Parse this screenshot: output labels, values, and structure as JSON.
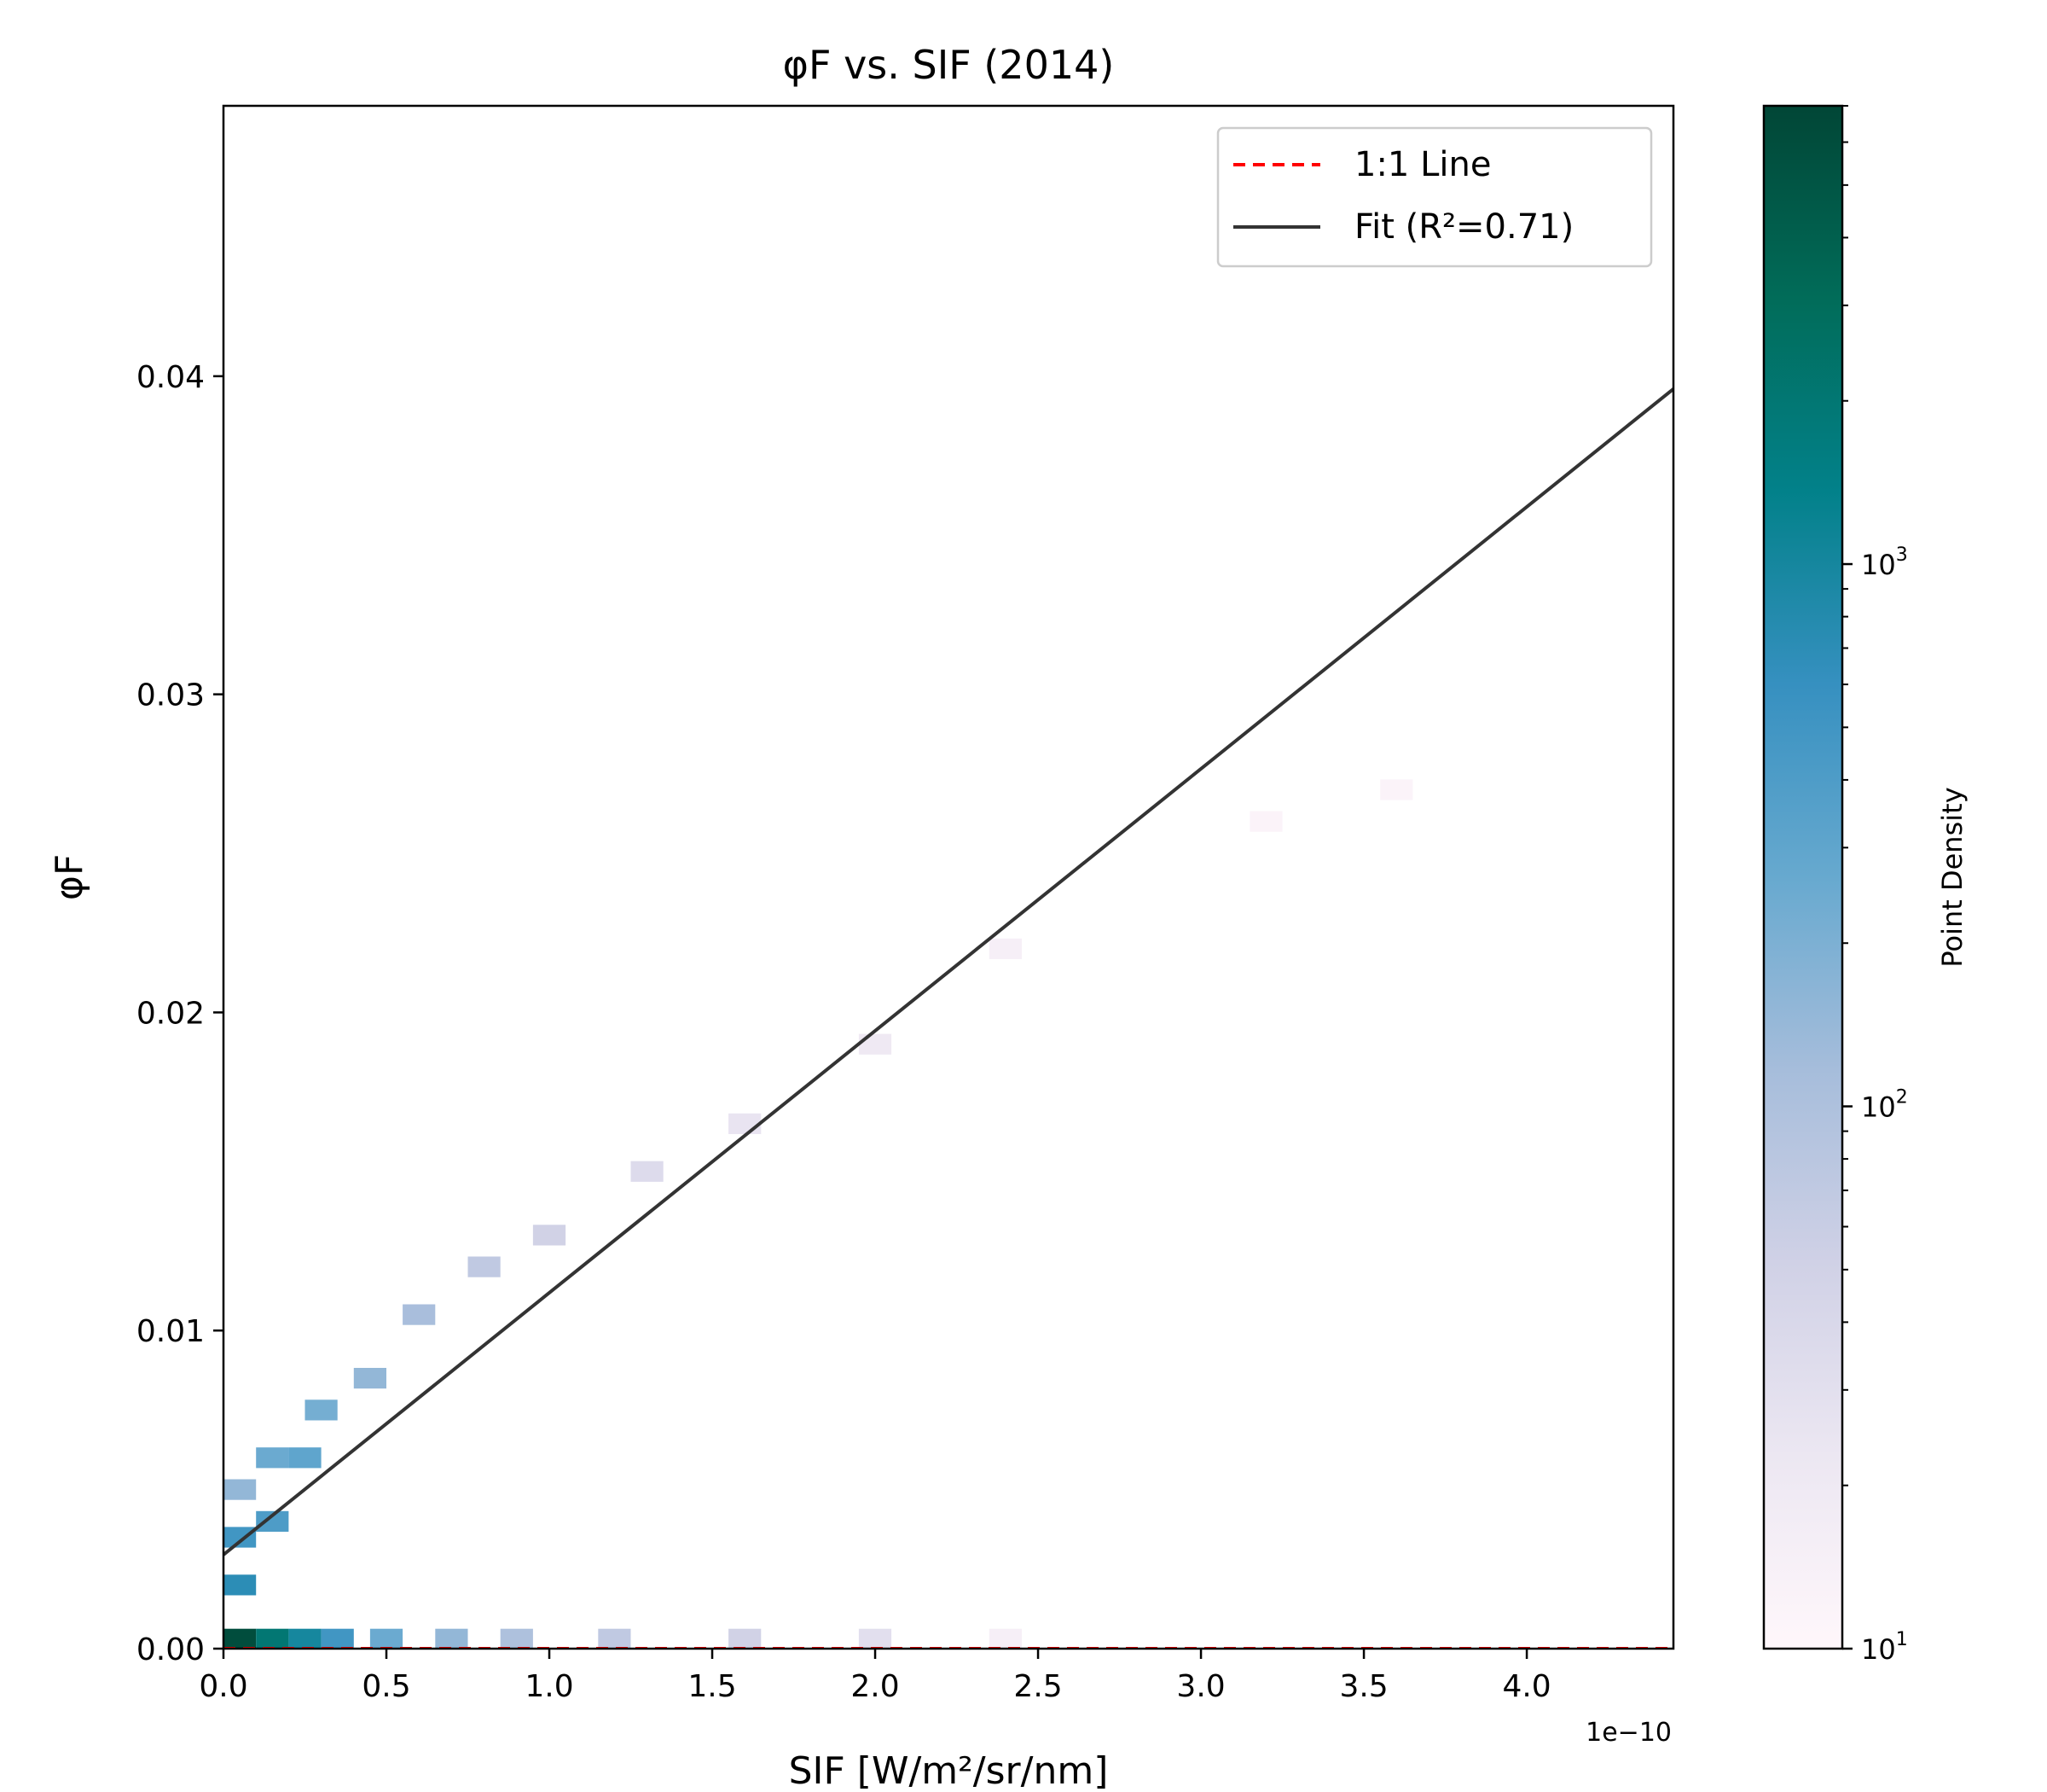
{
  "chart_data": {
    "type": "heatmap",
    "title": "φF vs. SIF (2014)",
    "xlabel": "SIF [W/m²/sr/nm]",
    "ylabel": "φF",
    "x_offset_text": "1e−10",
    "x_multiplier": 1e-10,
    "xlim": [
      0.0,
      4.45
    ],
    "ylim": [
      0.0,
      0.0485
    ],
    "x_ticks": [
      0.0,
      0.5,
      1.0,
      1.5,
      2.0,
      2.5,
      3.0,
      3.5,
      4.0
    ],
    "x_tick_labels": [
      "0.0",
      "0.5",
      "1.0",
      "1.5",
      "2.0",
      "2.5",
      "3.0",
      "3.5",
      "4.0"
    ],
    "y_ticks": [
      0.0,
      0.01,
      0.02,
      0.03,
      0.04
    ],
    "y_tick_labels": [
      "0.00",
      "0.01",
      "0.02",
      "0.03",
      "0.04"
    ],
    "grid": false,
    "legend_position": "top-right",
    "legend": [
      {
        "label": "1:1 Line",
        "color": "#ff0000",
        "style": "dashed"
      },
      {
        "label": "Fit (R²=0.71)",
        "color": "#333333",
        "style": "solid"
      }
    ],
    "series": [
      {
        "name": "1:1 Line",
        "kind": "line",
        "x": [
          0.0,
          4.45
        ],
        "y": [
          0.0,
          0.0
        ]
      },
      {
        "name": "Fit (R²=0.71)",
        "kind": "line",
        "x": [
          0.0,
          4.45
        ],
        "y": [
          0.00295,
          0.0396
        ]
      }
    ],
    "colorbar": {
      "label": "Point Density",
      "scale": "log",
      "range": [
        10,
        7000
      ],
      "ticks": [
        10,
        100,
        1000
      ],
      "tick_labels": [
        "10",
        "10",
        "10"
      ],
      "tick_exponents": [
        "1",
        "2",
        "3"
      ],
      "colors": [
        "#fff7fb",
        "#ece7f2",
        "#d0d1e6",
        "#a6bddb",
        "#67a9cf",
        "#3690c0",
        "#02818a",
        "#016c59",
        "#014636"
      ]
    },
    "density_bins": {
      "bin_width_x": 0.1,
      "bin_width_y": 0.00065,
      "centers": [
        {
          "x": 0.05,
          "y": 0.0003,
          "count": 6000
        },
        {
          "x": 0.15,
          "y": 0.0003,
          "count": 2000
        },
        {
          "x": 0.25,
          "y": 0.0003,
          "count": 1000
        },
        {
          "x": 0.35,
          "y": 0.0003,
          "count": 500
        },
        {
          "x": 0.5,
          "y": 0.0003,
          "count": 250
        },
        {
          "x": 0.7,
          "y": 0.0003,
          "count": 150
        },
        {
          "x": 0.9,
          "y": 0.0003,
          "count": 100
        },
        {
          "x": 1.2,
          "y": 0.0003,
          "count": 70
        },
        {
          "x": 1.6,
          "y": 0.0003,
          "count": 50
        },
        {
          "x": 2.0,
          "y": 0.0003,
          "count": 30
        },
        {
          "x": 2.4,
          "y": 0.0003,
          "count": 15
        },
        {
          "x": 0.05,
          "y": 0.002,
          "count": 700
        },
        {
          "x": 0.05,
          "y": 0.0035,
          "count": 500
        },
        {
          "x": 0.05,
          "y": 0.005,
          "count": 150
        },
        {
          "x": 0.15,
          "y": 0.004,
          "count": 400
        },
        {
          "x": 0.15,
          "y": 0.006,
          "count": 250
        },
        {
          "x": 0.25,
          "y": 0.006,
          "count": 300
        },
        {
          "x": 0.3,
          "y": 0.0075,
          "count": 220
        },
        {
          "x": 0.45,
          "y": 0.0085,
          "count": 150
        },
        {
          "x": 0.6,
          "y": 0.0105,
          "count": 110
        },
        {
          "x": 0.8,
          "y": 0.012,
          "count": 70
        },
        {
          "x": 1.0,
          "y": 0.013,
          "count": 50
        },
        {
          "x": 1.3,
          "y": 0.015,
          "count": 35
        },
        {
          "x": 1.6,
          "y": 0.0165,
          "count": 25
        },
        {
          "x": 2.0,
          "y": 0.019,
          "count": 20
        },
        {
          "x": 2.4,
          "y": 0.022,
          "count": 15
        },
        {
          "x": 3.2,
          "y": 0.026,
          "count": 12
        },
        {
          "x": 3.6,
          "y": 0.027,
          "count": 12
        }
      ]
    },
    "overlay_series": [],
    "data_labels": []
  }
}
